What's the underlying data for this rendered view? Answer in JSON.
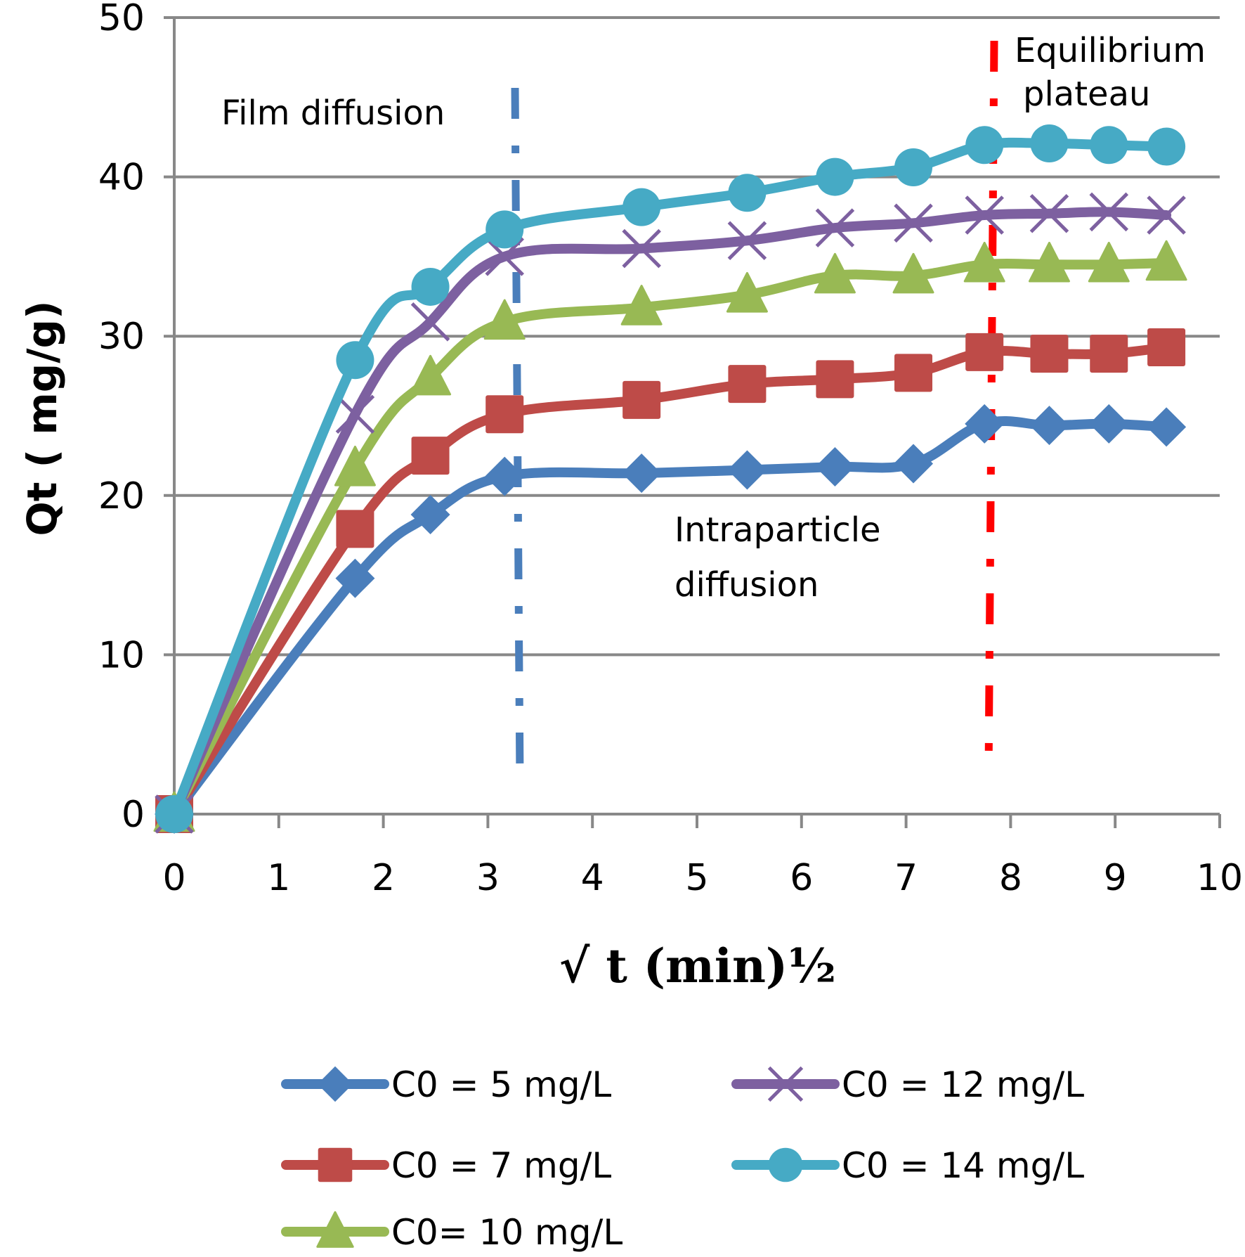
{
  "chart_data": {
    "type": "line",
    "title": "",
    "xlabel": "√ t  (min)½",
    "ylabel": "Qt ( mg/g)",
    "xlim": [
      0,
      10
    ],
    "ylim": [
      0,
      50
    ],
    "x_ticks": [
      "0",
      "1",
      "2",
      "3",
      "4",
      "5",
      "6",
      "7",
      "8",
      "9",
      "10"
    ],
    "y_ticks": [
      "0",
      "10",
      "20",
      "30",
      "40",
      "50"
    ],
    "grid": "horizontal",
    "legend_position": "bottom",
    "x": [
      0,
      1.73,
      2.45,
      3.16,
      4.47,
      5.48,
      6.32,
      7.07,
      7.75,
      8.37,
      8.94,
      9.49
    ],
    "series": [
      {
        "name": "C0 = 5 mg/L",
        "color": "#4A7EBB",
        "marker": "diamond",
        "values": [
          0,
          14.8,
          18.8,
          21.2,
          21.4,
          21.6,
          21.8,
          22.0,
          24.5,
          24.4,
          24.5,
          24.3
        ]
      },
      {
        "name": "C0 = 7 mg/L",
        "color": "#BE4B48",
        "marker": "square",
        "values": [
          0,
          17.9,
          22.5,
          25.1,
          26.0,
          27.0,
          27.3,
          27.7,
          29.0,
          28.9,
          28.9,
          29.3
        ]
      },
      {
        "name": "C0= 10 mg/L",
        "color": "#98B954",
        "marker": "triangle",
        "values": [
          0,
          21.7,
          27.4,
          30.9,
          31.8,
          32.6,
          33.8,
          33.8,
          34.5,
          34.5,
          34.5,
          34.6
        ]
      },
      {
        "name": "C0 = 12 mg/L",
        "color": "#7D60A0",
        "marker": "x",
        "values": [
          0,
          25.1,
          30.9,
          35.0,
          35.5,
          36.0,
          36.8,
          37.1,
          37.6,
          37.7,
          37.8,
          37.6
        ]
      },
      {
        "name": "C0 = 14 mg/L",
        "color": "#46AAC5",
        "marker": "circle",
        "values": [
          0,
          28.5,
          33.1,
          36.7,
          38.1,
          39.0,
          40.0,
          40.6,
          42.0,
          42.1,
          42.0,
          41.9
        ]
      }
    ],
    "annotations": [
      {
        "id": "film",
        "lines": [
          "Film diffusion"
        ]
      },
      {
        "id": "intra",
        "lines": [
          "Intraparticle",
          "diffusion"
        ]
      },
      {
        "id": "equil",
        "lines": [
          "Equilibrium",
          "plateau"
        ]
      }
    ],
    "reference_lines": [
      {
        "name": "film-boundary",
        "x": 3.3,
        "color": "#4A7EBB",
        "style": "dash-dot"
      },
      {
        "name": "equilibrium-boundary",
        "x": 7.8,
        "color": "#FF0000",
        "style": "dash-dot"
      }
    ]
  }
}
